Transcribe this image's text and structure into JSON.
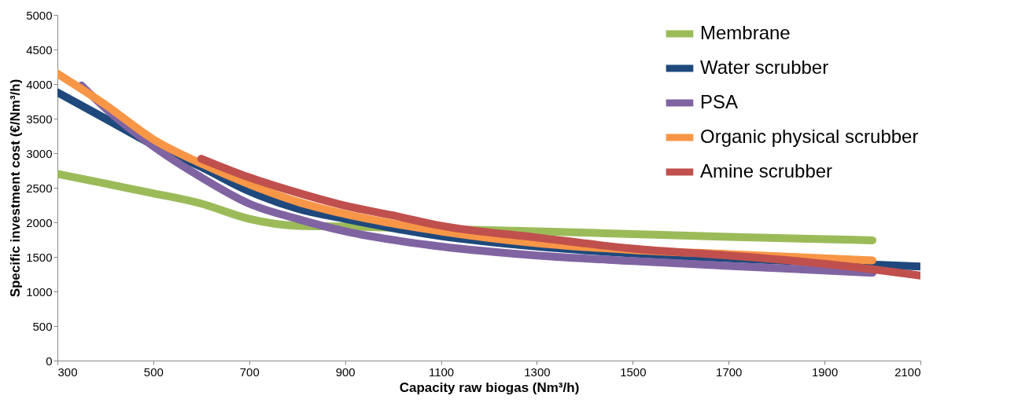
{
  "chart_data": {
    "type": "line",
    "xlabel": "Capacity raw biogas (Nm³/h)",
    "ylabel": "Specific investment cost (€/Nm³/h)",
    "xlim": [
      300,
      2100
    ],
    "xticks": [
      300,
      500,
      700,
      900,
      1100,
      1300,
      1500,
      1700,
      1900,
      2100
    ],
    "ylim": [
      0,
      5000
    ],
    "yticks": [
      0,
      500,
      1000,
      1500,
      2000,
      2500,
      3000,
      3500,
      4000,
      4500,
      5000
    ],
    "grid": false,
    "legend": "top right",
    "marker": "none",
    "line_style": "solid",
    "series": [
      {
        "name": "Membrane",
        "color": "#9bbb59",
        "x": [
          300,
          400,
          500,
          600,
          700,
          800,
          900,
          1100,
          1300,
          1500,
          1700,
          2000
        ],
        "values": [
          2700,
          2560,
          2420,
          2270,
          2050,
          1950,
          1940,
          1900,
          1870,
          1830,
          1790,
          1740
        ]
      },
      {
        "name": "Water scrubber",
        "color": "#1f497d",
        "x": [
          300,
          400,
          500,
          600,
          700,
          800,
          900,
          1100,
          1300,
          1500,
          1700,
          1900,
          2100
        ],
        "values": [
          3880,
          3500,
          3120,
          2800,
          2450,
          2200,
          2050,
          1800,
          1650,
          1550,
          1480,
          1420,
          1360
        ]
      },
      {
        "name": "PSA",
        "color": "#8064a2",
        "x": [
          350,
          400,
          500,
          600,
          700,
          800,
          900,
          1100,
          1300,
          1500,
          1700,
          2000
        ],
        "values": [
          3980,
          3650,
          3100,
          2650,
          2270,
          2050,
          1870,
          1650,
          1520,
          1440,
          1370,
          1270
        ]
      },
      {
        "name": "Organic physical scrubber",
        "color": "#f79646",
        "x": [
          300,
          400,
          500,
          600,
          700,
          800,
          900,
          1100,
          1300,
          1500,
          1700,
          2000
        ],
        "values": [
          4150,
          3700,
          3200,
          2850,
          2550,
          2300,
          2120,
          1870,
          1700,
          1600,
          1540,
          1450
        ]
      },
      {
        "name": "Amine scrubber",
        "color": "#c0504d",
        "x": [
          600,
          700,
          800,
          900,
          1000,
          1100,
          1300,
          1500,
          1700,
          1900,
          2100
        ],
        "values": [
          2920,
          2650,
          2430,
          2240,
          2100,
          1950,
          1780,
          1620,
          1520,
          1400,
          1230
        ]
      }
    ]
  }
}
